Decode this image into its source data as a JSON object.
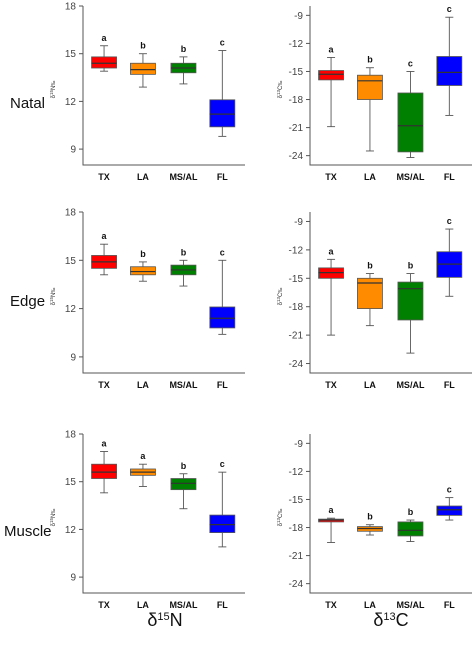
{
  "figure": {
    "rows": [
      "Natal",
      "Edge",
      "Muscle"
    ],
    "column_labels": [
      {
        "greek": "δ",
        "sup": "15",
        "elem": "N"
      },
      {
        "greek": "δ",
        "sup": "13",
        "elem": "C"
      }
    ],
    "colors": {
      "TX": "#ff0000",
      "LA": "#ff8c00",
      "MS/AL": "#008000",
      "FL": "#0000ff"
    }
  },
  "chart_data": [
    {
      "type": "box",
      "row": "Natal",
      "isotope": "N",
      "ylabel": {
        "greek": "δ",
        "sup": "15",
        "elem": "N",
        "unit": "‰"
      },
      "ylim": [
        8,
        18
      ],
      "yticks": [
        9,
        12,
        15,
        18
      ],
      "categories": [
        "TX",
        "LA",
        "MS/AL",
        "FL"
      ],
      "boxes": [
        {
          "whisker_low": 13.9,
          "q1": 14.1,
          "median": 14.4,
          "q3": 14.8,
          "whisker_high": 15.5
        },
        {
          "whisker_low": 12.9,
          "q1": 13.7,
          "median": 14.0,
          "q3": 14.4,
          "whisker_high": 15.0
        },
        {
          "whisker_low": 13.1,
          "q1": 13.8,
          "median": 14.1,
          "q3": 14.4,
          "whisker_high": 14.8
        },
        {
          "whisker_low": 9.8,
          "q1": 10.4,
          "median": 11.2,
          "q3": 12.1,
          "whisker_high": 15.2
        }
      ],
      "significance": [
        "a",
        "b",
        "b",
        "c"
      ]
    },
    {
      "type": "box",
      "row": "Natal",
      "isotope": "C",
      "ylabel": {
        "greek": "δ",
        "sup": "13",
        "elem": "C",
        "unit": "‰"
      },
      "ylim": [
        -25,
        -8
      ],
      "yticks": [
        -9,
        -12,
        -15,
        -18,
        -21,
        -24
      ],
      "categories": [
        "TX",
        "LA",
        "MS/AL",
        "FL"
      ],
      "boxes": [
        {
          "whisker_low": -20.9,
          "q1": -15.9,
          "median": -15.3,
          "q3": -14.9,
          "whisker_high": -13.5
        },
        {
          "whisker_low": -23.5,
          "q1": -18.0,
          "median": -16.0,
          "q3": -15.4,
          "whisker_high": -14.6
        },
        {
          "whisker_low": -24.2,
          "q1": -23.6,
          "median": -20.8,
          "q3": -17.3,
          "whisker_high": -15.0
        },
        {
          "whisker_low": -19.7,
          "q1": -16.5,
          "median": -15.1,
          "q3": -13.4,
          "whisker_high": -9.2
        }
      ],
      "significance": [
        "a",
        "b",
        "c",
        "c"
      ]
    },
    {
      "type": "box",
      "row": "Edge",
      "isotope": "N",
      "ylabel": {
        "greek": "δ",
        "sup": "15",
        "elem": "N",
        "unit": "‰"
      },
      "ylim": [
        8,
        18
      ],
      "yticks": [
        9,
        12,
        15,
        18
      ],
      "categories": [
        "TX",
        "LA",
        "MS/AL",
        "FL"
      ],
      "boxes": [
        {
          "whisker_low": 14.1,
          "q1": 14.5,
          "median": 14.9,
          "q3": 15.3,
          "whisker_high": 16.0
        },
        {
          "whisker_low": 13.7,
          "q1": 14.1,
          "median": 14.3,
          "q3": 14.6,
          "whisker_high": 14.9
        },
        {
          "whisker_low": 13.4,
          "q1": 14.1,
          "median": 14.4,
          "q3": 14.7,
          "whisker_high": 15.0
        },
        {
          "whisker_low": 10.4,
          "q1": 10.8,
          "median": 11.4,
          "q3": 12.1,
          "whisker_high": 15.0
        }
      ],
      "significance": [
        "a",
        "b",
        "b",
        "c"
      ]
    },
    {
      "type": "box",
      "row": "Edge",
      "isotope": "C",
      "ylabel": {
        "greek": "δ",
        "sup": "13",
        "elem": "C",
        "unit": "‰"
      },
      "ylim": [
        -25,
        -8
      ],
      "yticks": [
        -9,
        -12,
        -15,
        -18,
        -21,
        -24
      ],
      "categories": [
        "TX",
        "LA",
        "MS/AL",
        "FL"
      ],
      "boxes": [
        {
          "whisker_low": -21.0,
          "q1": -15.0,
          "median": -14.4,
          "q3": -13.9,
          "whisker_high": -13.0
        },
        {
          "whisker_low": -20.0,
          "q1": -18.2,
          "median": -15.5,
          "q3": -15.0,
          "whisker_high": -14.5
        },
        {
          "whisker_low": -22.9,
          "q1": -19.4,
          "median": -16.1,
          "q3": -15.4,
          "whisker_high": -14.5
        },
        {
          "whisker_low": -16.9,
          "q1": -14.9,
          "median": -13.5,
          "q3": -12.2,
          "whisker_high": -9.8
        }
      ],
      "significance": [
        "a",
        "b",
        "b",
        "c"
      ]
    },
    {
      "type": "box",
      "row": "Muscle",
      "isotope": "N",
      "ylabel": {
        "greek": "δ",
        "sup": "15",
        "elem": "N",
        "unit": "‰"
      },
      "ylim": [
        8,
        18
      ],
      "yticks": [
        9,
        12,
        15,
        18
      ],
      "categories": [
        "TX",
        "LA",
        "MS/AL",
        "FL"
      ],
      "boxes": [
        {
          "whisker_low": 14.3,
          "q1": 15.2,
          "median": 15.6,
          "q3": 16.1,
          "whisker_high": 16.9
        },
        {
          "whisker_low": 14.7,
          "q1": 15.4,
          "median": 15.6,
          "q3": 15.8,
          "whisker_high": 16.1
        },
        {
          "whisker_low": 13.3,
          "q1": 14.5,
          "median": 14.9,
          "q3": 15.2,
          "whisker_high": 15.5
        },
        {
          "whisker_low": 10.9,
          "q1": 11.8,
          "median": 12.3,
          "q3": 12.9,
          "whisker_high": 15.6
        }
      ],
      "significance": [
        "a",
        "a",
        "b",
        "c"
      ]
    },
    {
      "type": "box",
      "row": "Muscle",
      "isotope": "C",
      "ylabel": {
        "greek": "δ",
        "sup": "13",
        "elem": "C",
        "unit": "‰"
      },
      "ylim": [
        -25,
        -8
      ],
      "yticks": [
        -9,
        -12,
        -15,
        -18,
        -21,
        -24
      ],
      "categories": [
        "TX",
        "LA",
        "MS/AL",
        "FL"
      ],
      "boxes": [
        {
          "whisker_low": -19.6,
          "q1": -17.4,
          "median": -17.2,
          "q3": -17.1,
          "whisker_high": -17.0
        },
        {
          "whisker_low": -18.8,
          "q1": -18.4,
          "median": -18.1,
          "q3": -17.9,
          "whisker_high": -17.7
        },
        {
          "whisker_low": -19.5,
          "q1": -18.9,
          "median": -18.3,
          "q3": -17.4,
          "whisker_high": -17.2
        },
        {
          "whisker_low": -17.2,
          "q1": -16.7,
          "median": -16.1,
          "q3": -15.7,
          "whisker_high": -14.8
        }
      ],
      "significance": [
        "a",
        "b",
        "b",
        "c"
      ]
    }
  ]
}
